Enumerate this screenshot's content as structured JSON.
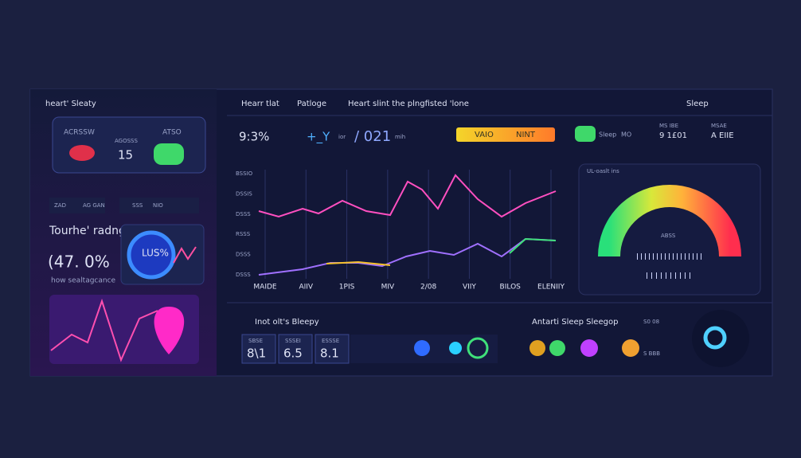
{
  "sidebar": {
    "title": "heart' Sleaty",
    "card": {
      "label": "ACRSSW",
      "sublabel": "AGOSSS",
      "value": "15",
      "tag": "ATSO"
    },
    "tabs": [
      "ZAD",
      "AG GAN",
      "SSS",
      "NIO"
    ],
    "heading": "Tourhe' radngy",
    "percent": "(47. 0%",
    "caption": "how sealtagcance",
    "gauge_label": "LUS%"
  },
  "header": {
    "tabs": [
      "Hearr tlat",
      "Patloge"
    ],
    "subtitle": "Heart slint the plngfisted 'lone",
    "right": "Sleep"
  },
  "stats": {
    "s1": "9:3%",
    "s2": "+_Y",
    "s2_unit": "ior",
    "s3": "/ 021",
    "s3_unit": "mih",
    "bar_left": "VAIO",
    "bar_right": "NINT",
    "pill_label": "Sleep",
    "pill_value": "MO",
    "s4_label": "MS IBE",
    "s4": "9 1£01",
    "s5_label": "MSAE",
    "s5": "A EIIE"
  },
  "chart": {
    "y_labels": [
      "BSSIO",
      "DSSIS",
      "DSSS",
      "RSSS",
      "DSSS",
      "DSSS"
    ],
    "x_labels": [
      "MAIDE",
      "AIIV",
      "1PIS",
      "MIV",
      "2/08",
      "VIIY",
      "BILOS",
      "ELENIIY"
    ]
  },
  "gauge": {
    "title": "UL-oaslt ins",
    "center": "ABSS"
  },
  "bottom": {
    "title": "Inot olt's Bleepy",
    "tiles": [
      {
        "label": "SBSE",
        "value": "8\\1"
      },
      {
        "label": "SSSEI",
        "value": "6.5"
      },
      {
        "label": "ESSSE",
        "value": "8.1"
      }
    ],
    "title2": "Antarti Sleep Sleegop",
    "tag": "S0 08",
    "tag2": "S BBB"
  }
}
